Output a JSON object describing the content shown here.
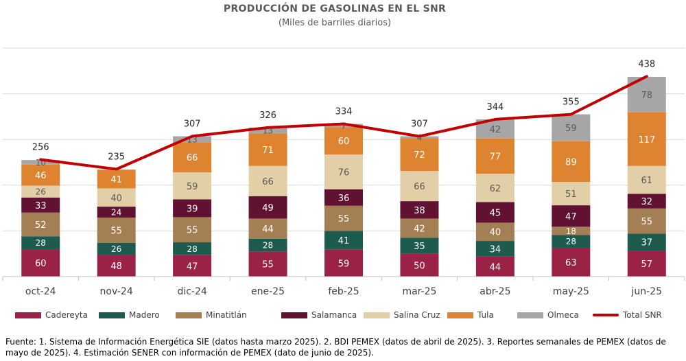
{
  "chart_data": {
    "type": "bar",
    "stacked": true,
    "title": "PRODUCCIÓN DE GASOLINAS EN EL SNR",
    "subtitle": "(Miles de barriles diarios)",
    "categories": [
      "oct-24",
      "nov-24",
      "dic-24",
      "ene-25",
      "feb-25",
      "mar-25",
      "abr-25",
      "may-25",
      "jun-25"
    ],
    "series": [
      {
        "name": "Cadereyta",
        "color": "#9b2247",
        "label_color": "#ffffff",
        "values": [
          60,
          48,
          47,
          55,
          59,
          50,
          44,
          63,
          57
        ]
      },
      {
        "name": "Madero",
        "color": "#1e5b4f",
        "label_color": "#ffffff",
        "values": [
          28,
          26,
          28,
          28,
          41,
          35,
          34,
          28,
          37
        ]
      },
      {
        "name": "Minatitlán",
        "color": "#a57f54",
        "label_color": "#ffffff",
        "values": [
          52,
          55,
          55,
          44,
          55,
          42,
          40,
          18,
          55
        ]
      },
      {
        "name": "Salamanca",
        "color": "#611232",
        "label_color": "#ffffff",
        "values": [
          33,
          24,
          39,
          49,
          36,
          38,
          45,
          47,
          32
        ]
      },
      {
        "name": "Salina Cruz",
        "color": "#e3cfa7",
        "label_color": "#595959",
        "values": [
          26,
          40,
          59,
          66,
          76,
          66,
          62,
          51,
          61
        ]
      },
      {
        "name": "Tula",
        "color": "#de8430",
        "label_color": "#ffffff",
        "values": [
          46,
          41,
          66,
          71,
          60,
          72,
          77,
          89,
          117
        ]
      },
      {
        "name": "Olmeca",
        "color": "#a6a6a6",
        "label_color": "#595959",
        "values": [
          10,
          0,
          13,
          13,
          7,
          4,
          42,
          59,
          78
        ]
      }
    ],
    "total": {
      "name": "Total SNR",
      "color": "#c00000",
      "values": [
        256,
        235,
        307,
        326,
        334,
        307,
        344,
        355,
        438
      ]
    },
    "ylim": [
      0,
      500
    ],
    "grid": true,
    "legend": "bottom"
  },
  "footer": {
    "text": "Fuente: 1. Sistema de Información Energética SIE (datos hasta marzo 2025). 2. BDI PEMEX (datos de abril de 2025). 3. Reportes semanales de PEMEX (datos de mayo de 2025). 4. Estimación SENER con información de PEMEX (dato de junio de 2025)."
  }
}
